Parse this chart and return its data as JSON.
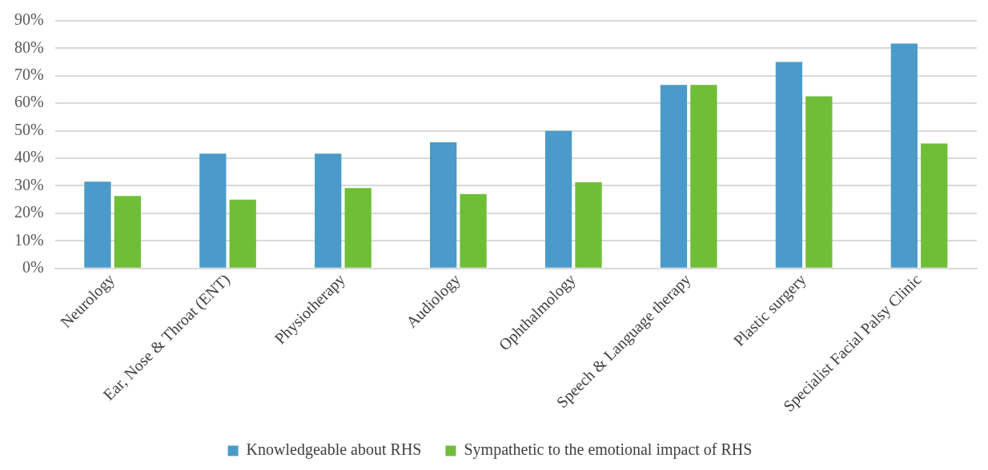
{
  "chart_data": {
    "type": "bar",
    "categories": [
      "Neurology",
      "Ear, Nose & Throat (ENT)",
      "Physiotherapy",
      "Audiology",
      "Ophthalmology",
      "Speech & Language therapy",
      "Plastic surgery",
      "Specialist Facial Palsy Clinic"
    ],
    "series": [
      {
        "name": "Knowledgeable about RHS",
        "color": "#4a9bc9",
        "values": [
          31.5,
          41.7,
          41.7,
          45.8,
          50,
          66.7,
          75,
          81.7
        ]
      },
      {
        "name": "Sympathetic to the emotional impact of RHS",
        "color": "#6fbe38",
        "values": [
          26.3,
          25,
          29.2,
          27,
          31.3,
          66.7,
          62.5,
          45.4
        ]
      }
    ],
    "ylim": [
      0,
      90
    ],
    "yticks": [
      {
        "value": 0,
        "label": "0%"
      },
      {
        "value": 10,
        "label": "10%"
      },
      {
        "value": 20,
        "label": "20%"
      },
      {
        "value": 30,
        "label": "30%"
      },
      {
        "value": 40,
        "label": "40%"
      },
      {
        "value": 50,
        "label": "50%"
      },
      {
        "value": 60,
        "label": "60%"
      },
      {
        "value": 70,
        "label": "70%"
      },
      {
        "value": 80,
        "label": "80%"
      },
      {
        "value": 90,
        "label": "90%"
      }
    ],
    "grid": "y",
    "legend": "bottom"
  }
}
